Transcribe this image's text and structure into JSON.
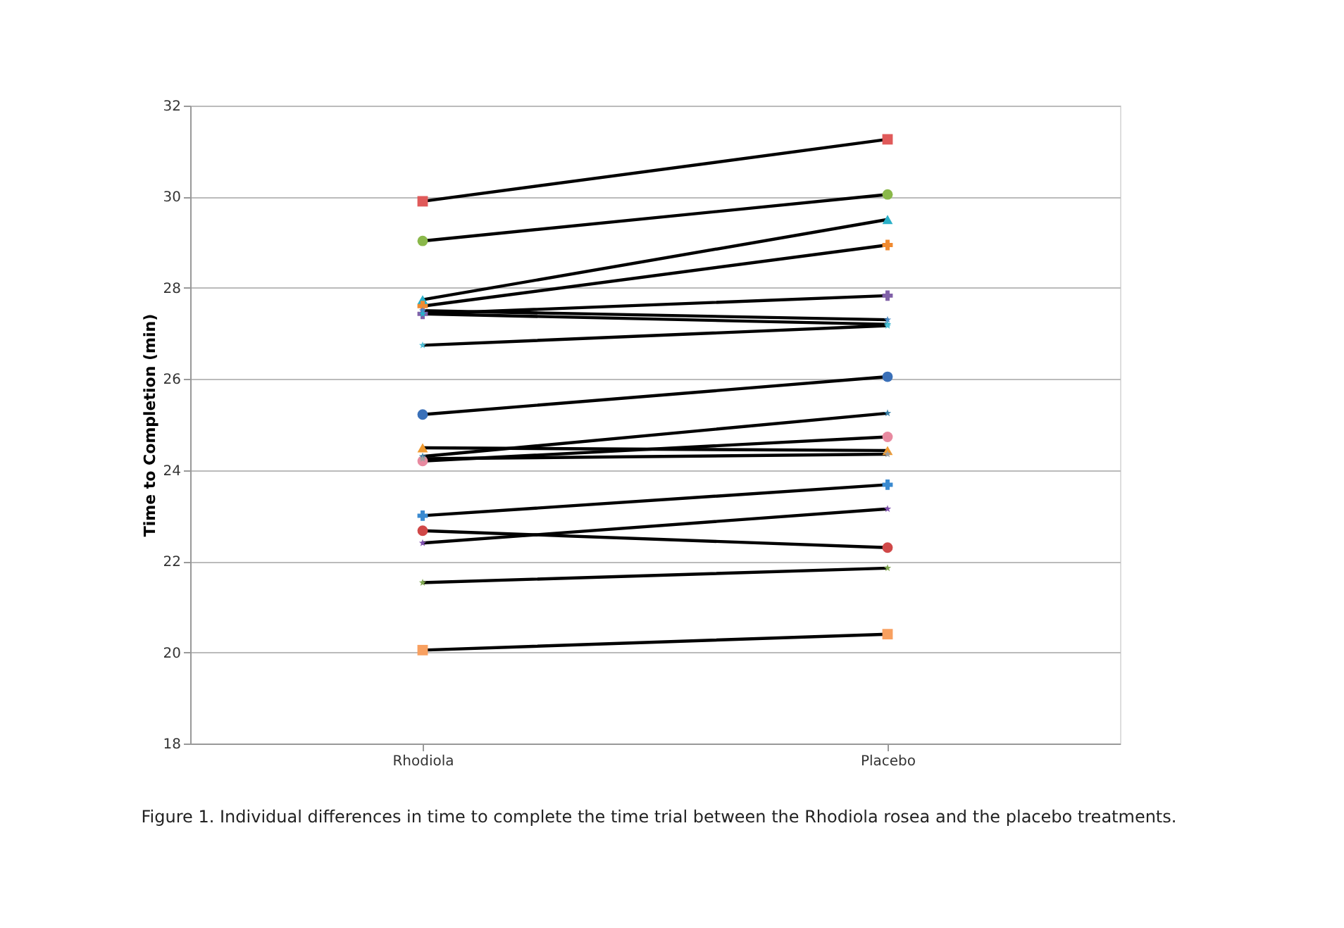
{
  "chart_data": {
    "type": "line",
    "ylabel": "Time to Completion (min)",
    "categories": [
      "Rhodiola",
      "Placebo"
    ],
    "ylim": [
      18,
      32
    ],
    "yticks": [
      18,
      20,
      22,
      24,
      26,
      28,
      30,
      32
    ],
    "grid": "y",
    "legend": false,
    "annotations": [
      "Figure 1. Individual differences in time to complete the time trial between the Rhodiola rosea and the placebo treatments."
    ],
    "series": [
      {
        "color": "#e05a5a",
        "marker": "square",
        "values": [
          29.9,
          31.26
        ]
      },
      {
        "color": "#8ab84a",
        "marker": "circle",
        "values": [
          29.03,
          30.05
        ]
      },
      {
        "color": "#2ab0c8",
        "marker": "triangle",
        "values": [
          27.74,
          29.5
        ]
      },
      {
        "color": "#f08a30",
        "marker": "cross",
        "values": [
          27.6,
          28.94
        ]
      },
      {
        "color": "#8060a8",
        "marker": "cross",
        "values": [
          27.43,
          27.83
        ]
      },
      {
        "color": "#4a8ac8",
        "marker": "star",
        "values": [
          27.5,
          27.3
        ]
      },
      {
        "color": "#2ab0c8",
        "marker": "star",
        "values": [
          27.43,
          27.2
        ]
      },
      {
        "color": "#50c0d8",
        "marker": "star",
        "values": [
          26.74,
          27.17
        ]
      },
      {
        "color": "#3a70b8",
        "marker": "circle",
        "values": [
          25.22,
          26.05
        ]
      },
      {
        "color": "#3a80a8",
        "marker": "star",
        "values": [
          24.3,
          25.25
        ]
      },
      {
        "color": "#e88aa0",
        "marker": "circle",
        "values": [
          24.2,
          24.73
        ]
      },
      {
        "color": "#f09a30",
        "marker": "triangle",
        "values": [
          24.49,
          24.43
        ]
      },
      {
        "color": "#a0a0a0",
        "marker": "star",
        "values": [
          24.25,
          24.35
        ]
      },
      {
        "color": "#3a8ad0",
        "marker": "cross",
        "values": [
          23.0,
          23.68
        ]
      },
      {
        "color": "#d04848",
        "marker": "circle",
        "values": [
          22.67,
          22.3
        ]
      },
      {
        "color": "#8050b0",
        "marker": "star",
        "values": [
          22.4,
          23.15
        ]
      },
      {
        "color": "#80a850",
        "marker": "star",
        "values": [
          21.53,
          21.85
        ]
      },
      {
        "color": "#f8a060",
        "marker": "square",
        "values": [
          20.05,
          20.4
        ]
      }
    ]
  }
}
